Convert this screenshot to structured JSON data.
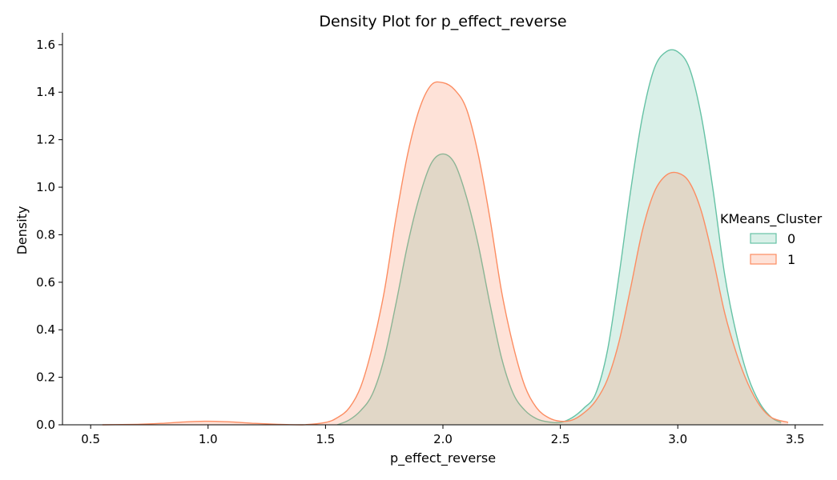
{
  "chart_data": {
    "type": "area",
    "title": "Density Plot for p_effect_reverse",
    "xlabel": "p_effect_reverse",
    "ylabel": "Density",
    "xlim": [
      0.38,
      3.62
    ],
    "ylim": [
      0,
      1.65
    ],
    "xticks": [
      0.5,
      1.0,
      1.5,
      2.0,
      2.5,
      3.0,
      3.5
    ],
    "xtick_labels": [
      "0.5",
      "1.0",
      "1.5",
      "2.0",
      "2.5",
      "3.0",
      "3.5"
    ],
    "yticks": [
      0.0,
      0.2,
      0.4,
      0.6,
      0.8,
      1.0,
      1.2,
      1.4,
      1.6
    ],
    "ytick_labels": [
      "0.0",
      "0.2",
      "0.4",
      "0.6",
      "0.8",
      "1.0",
      "1.2",
      "1.4",
      "1.6"
    ],
    "grid": false,
    "legend": {
      "title": "KMeans_Cluster",
      "placement": "right"
    },
    "series": [
      {
        "name": "0",
        "color": "#66c2a5",
        "fill": "#66c2a5",
        "x": [
          1.55,
          1.6,
          1.65,
          1.7,
          1.75,
          1.8,
          1.85,
          1.9,
          1.95,
          2.0,
          2.05,
          2.1,
          2.15,
          2.2,
          2.25,
          2.3,
          2.35,
          2.4,
          2.45,
          2.5,
          2.55,
          2.6,
          2.65,
          2.7,
          2.75,
          2.8,
          2.85,
          2.9,
          2.95,
          3.0,
          3.05,
          3.1,
          3.15,
          3.2,
          3.25,
          3.3,
          3.35,
          3.4,
          3.44
        ],
        "y": [
          0.0,
          0.02,
          0.06,
          0.13,
          0.28,
          0.51,
          0.76,
          0.96,
          1.1,
          1.14,
          1.1,
          0.96,
          0.76,
          0.51,
          0.28,
          0.13,
          0.06,
          0.025,
          0.012,
          0.01,
          0.03,
          0.07,
          0.13,
          0.31,
          0.63,
          0.99,
          1.3,
          1.5,
          1.57,
          1.57,
          1.5,
          1.3,
          0.99,
          0.63,
          0.38,
          0.2,
          0.09,
          0.03,
          0.01
        ]
      },
      {
        "name": "1",
        "color": "#fc8d62",
        "fill": "#fc8d62",
        "x": [
          0.55,
          0.7,
          0.8,
          0.9,
          1.0,
          1.1,
          1.2,
          1.3,
          1.4,
          1.5,
          1.55,
          1.6,
          1.65,
          1.7,
          1.75,
          1.8,
          1.85,
          1.9,
          1.95,
          2.0,
          2.05,
          2.1,
          2.15,
          2.2,
          2.25,
          2.3,
          2.35,
          2.4,
          2.45,
          2.5,
          2.55,
          2.6,
          2.65,
          2.7,
          2.75,
          2.8,
          2.85,
          2.9,
          2.95,
          3.0,
          3.05,
          3.1,
          3.15,
          3.2,
          3.25,
          3.3,
          3.35,
          3.4,
          3.47
        ],
        "y": [
          0.0,
          0.002,
          0.006,
          0.012,
          0.015,
          0.012,
          0.006,
          0.002,
          0.0,
          0.01,
          0.03,
          0.07,
          0.16,
          0.33,
          0.56,
          0.87,
          1.14,
          1.33,
          1.43,
          1.44,
          1.41,
          1.33,
          1.14,
          0.87,
          0.56,
          0.33,
          0.16,
          0.07,
          0.03,
          0.015,
          0.02,
          0.05,
          0.1,
          0.19,
          0.35,
          0.58,
          0.82,
          0.98,
          1.05,
          1.06,
          1.02,
          0.9,
          0.7,
          0.47,
          0.3,
          0.17,
          0.08,
          0.03,
          0.01
        ]
      }
    ]
  }
}
